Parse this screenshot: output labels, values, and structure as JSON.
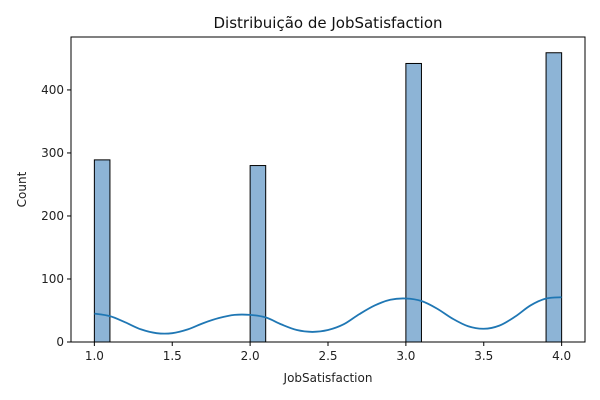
{
  "chart_data": {
    "type": "bar",
    "title": "Distribuição de JobSatisfaction",
    "xlabel": "JobSatisfaction",
    "ylabel": "Count",
    "xlim": [
      0.85,
      4.15
    ],
    "ylim": [
      0,
      484
    ],
    "xticks": [
      1.0,
      1.5,
      2.0,
      2.5,
      3.0,
      3.5,
      4.0
    ],
    "xtick_labels": [
      "1.0",
      "1.5",
      "2.0",
      "2.5",
      "3.0",
      "3.5",
      "4.0"
    ],
    "yticks": [
      0,
      100,
      200,
      300,
      400
    ],
    "ytick_labels": [
      "0",
      "100",
      "200",
      "300",
      "400"
    ],
    "bin_width": 0.1,
    "bars": [
      {
        "x_start": 1.0,
        "value": 289
      },
      {
        "x_start": 2.0,
        "value": 280
      },
      {
        "x_start": 3.0,
        "value": 442
      },
      {
        "x_start": 3.9,
        "value": 459
      }
    ],
    "kde": {
      "x": [
        1.0,
        1.1,
        1.2,
        1.3,
        1.4,
        1.5,
        1.6,
        1.7,
        1.8,
        1.9,
        2.0,
        2.1,
        2.2,
        2.3,
        2.4,
        2.5,
        2.6,
        2.7,
        2.8,
        2.9,
        3.0,
        3.1,
        3.2,
        3.3,
        3.4,
        3.5,
        3.6,
        3.7,
        3.8,
        3.9,
        4.0
      ],
      "y": [
        45,
        41,
        31,
        20,
        14,
        14,
        20,
        30,
        38,
        43,
        43,
        39,
        28,
        19,
        16,
        19,
        28,
        44,
        58,
        67,
        69,
        65,
        53,
        37,
        25,
        21,
        26,
        40,
        58,
        69,
        71
      ]
    },
    "colors": {
      "bar_fill": "#8db4d6",
      "bar_edge": "#000000",
      "line": "#1f77b4"
    },
    "grid": false,
    "legend": null
  }
}
